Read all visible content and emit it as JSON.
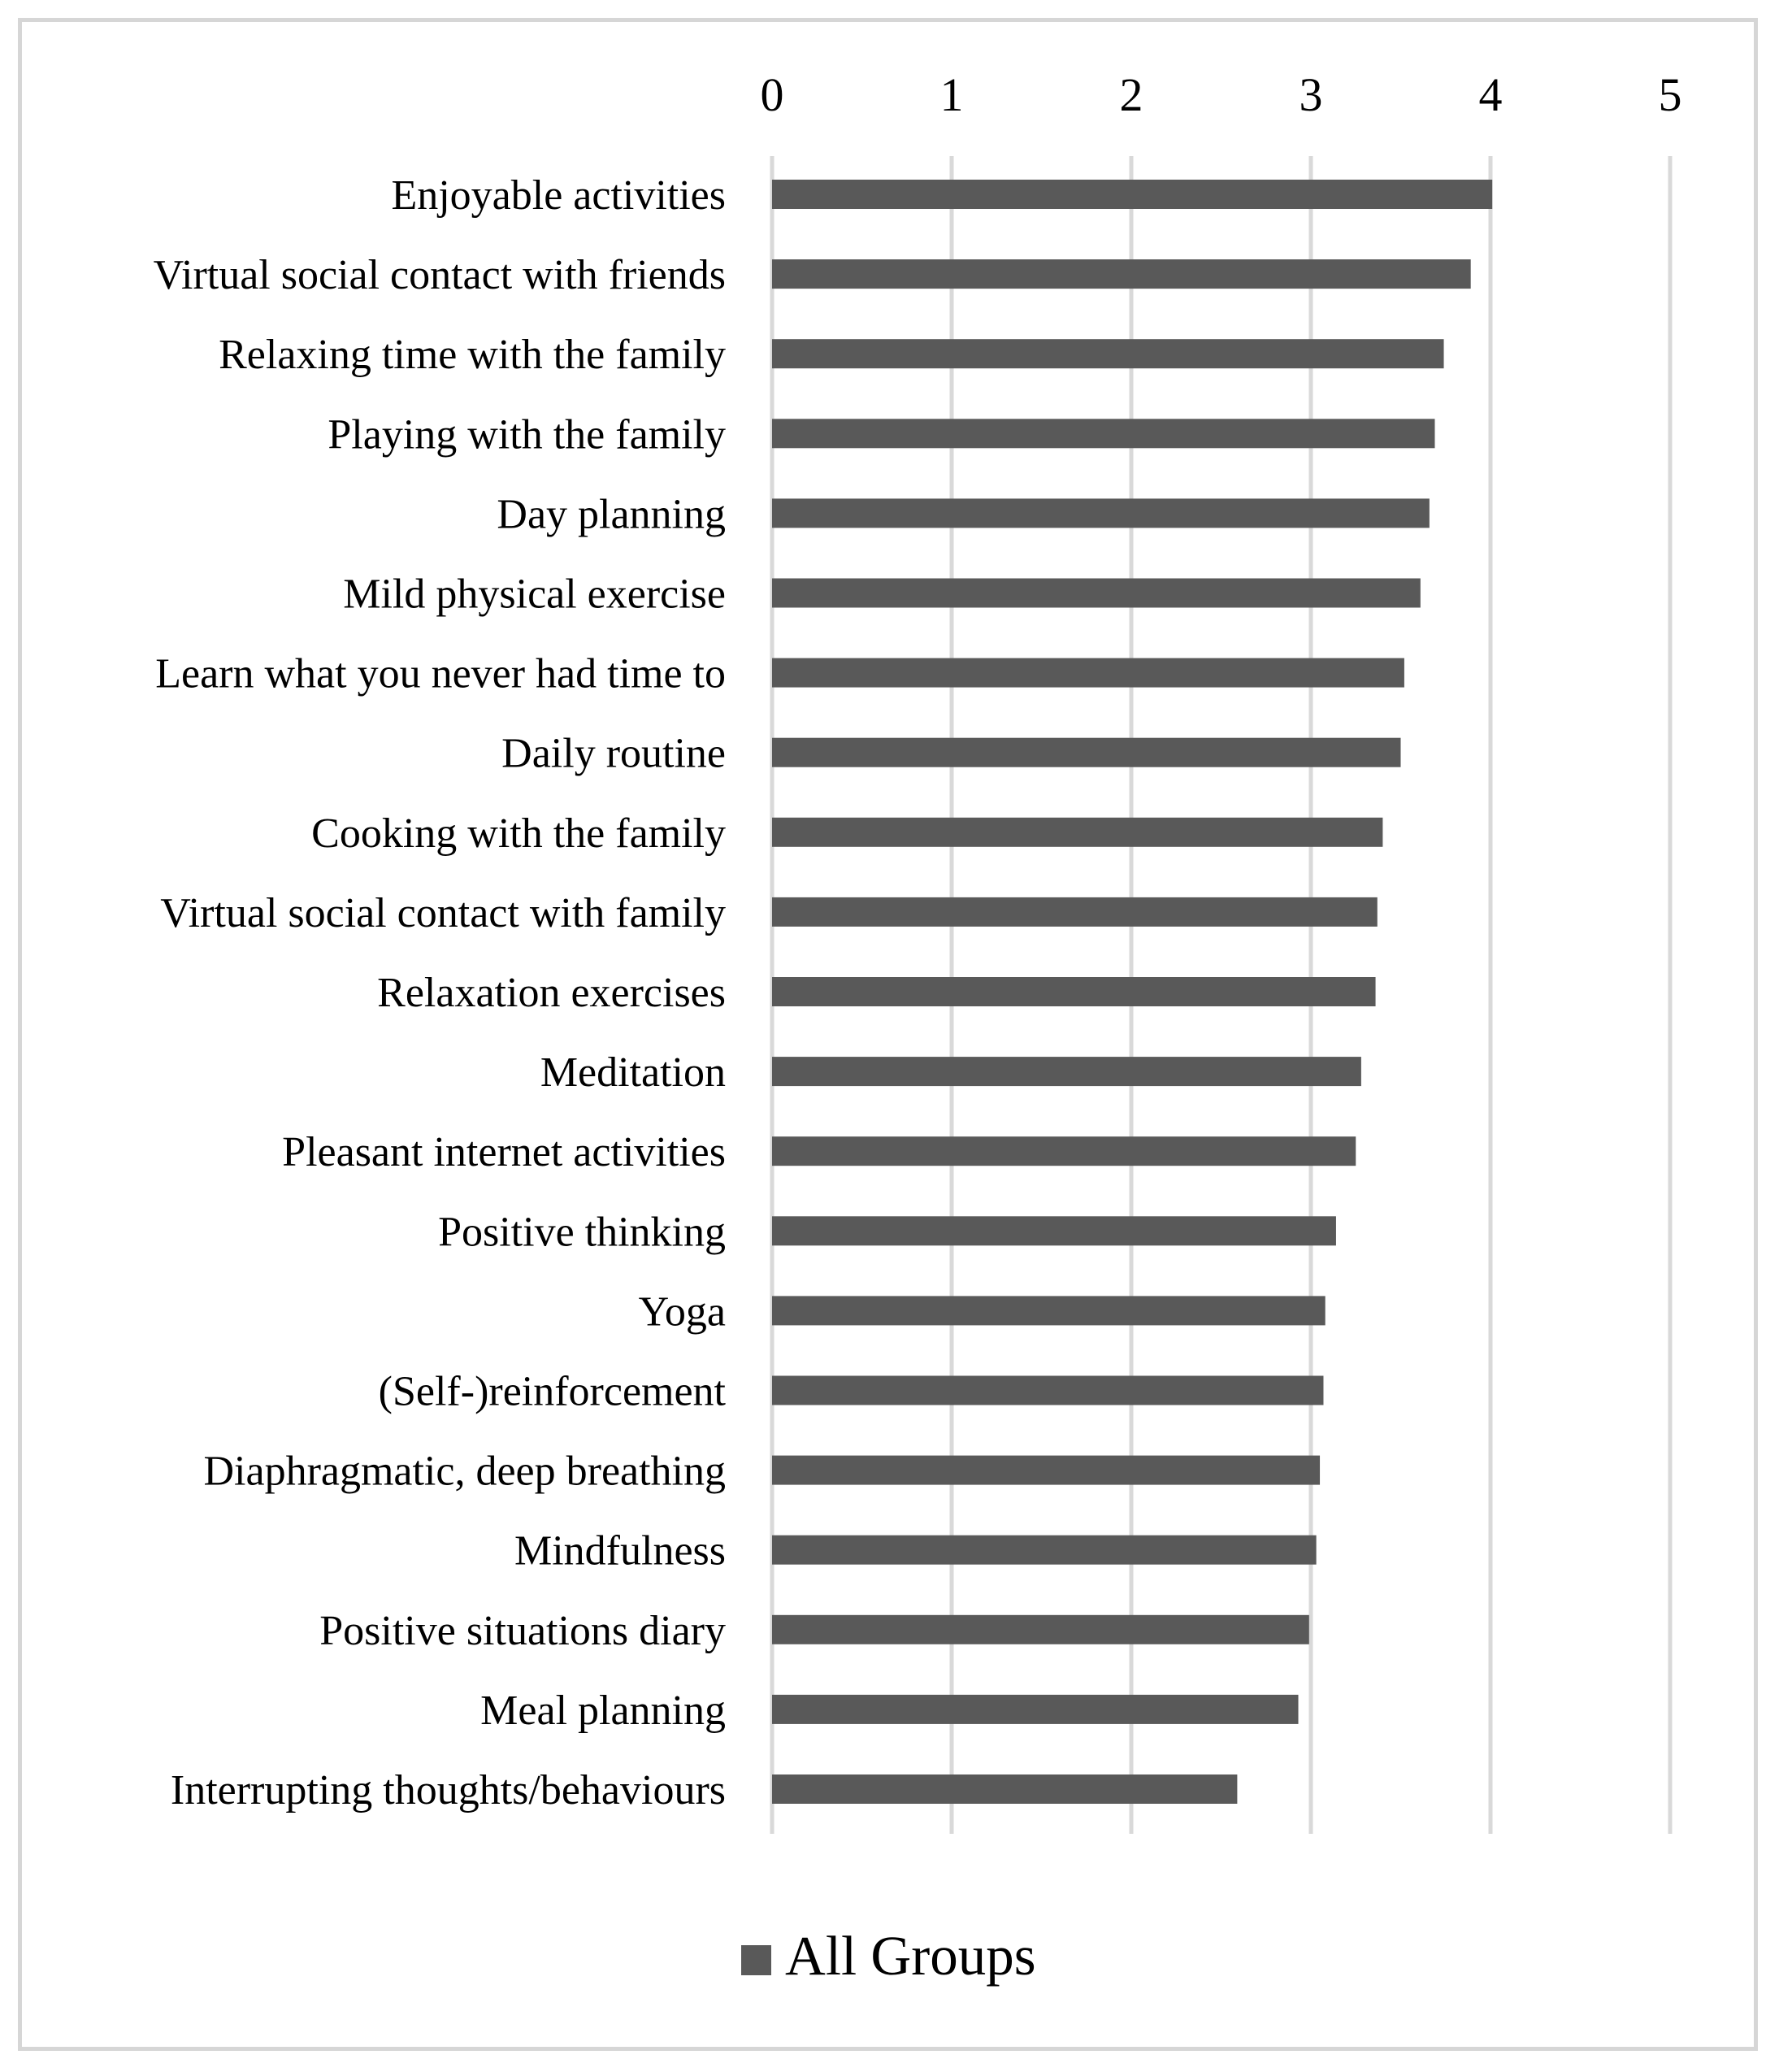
{
  "chart_data": {
    "type": "bar",
    "orientation": "horizontal",
    "categories": [
      "Enjoyable activities",
      "Virtual social contact with friends",
      "Relaxing time with the family",
      "Playing with the family",
      "Day planning",
      "Mild physical exercise",
      "Learn what you never had time to",
      "Daily routine",
      "Cooking with the family",
      "Virtual social contact with family",
      "Relaxation exercises",
      "Meditation",
      "Pleasant internet activities",
      "Positive thinking",
      "Yoga",
      "(Self-)reinforcement",
      "Diaphragmatic, deep breathing",
      "Mindfulness",
      "Positive situations diary",
      "Meal planning",
      "Interrupting thoughts/behaviours"
    ],
    "series": [
      {
        "name": "All Groups",
        "color": "#595959",
        "values": [
          4.01,
          3.89,
          3.74,
          3.69,
          3.66,
          3.61,
          3.52,
          3.5,
          3.4,
          3.37,
          3.36,
          3.28,
          3.25,
          3.14,
          3.08,
          3.07,
          3.05,
          3.03,
          2.99,
          2.93,
          2.59
        ]
      }
    ],
    "xlim": [
      0,
      5
    ],
    "xticks": [
      "0",
      "1",
      "2",
      "3",
      "4",
      "5"
    ],
    "xaxis_position": "top",
    "grid": true,
    "grid_color": "#d9d9d9",
    "legend": {
      "position": "bottom",
      "label": "All Groups"
    },
    "title": "",
    "xlabel": "",
    "ylabel": ""
  }
}
